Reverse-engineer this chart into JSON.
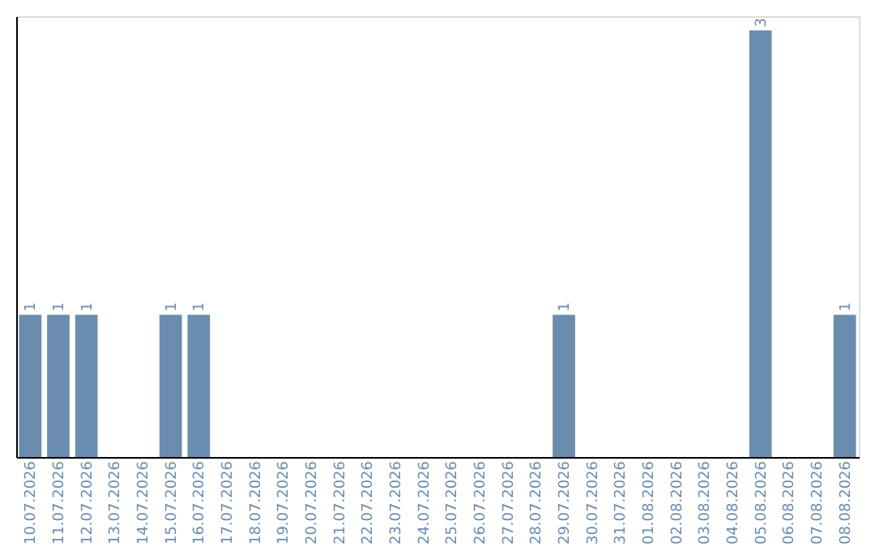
{
  "chart_data": {
    "type": "bar",
    "categories": [
      "10.07.2026",
      "11.07.2026",
      "12.07.2026",
      "13.07.2026",
      "14.07.2026",
      "15.07.2026",
      "16.07.2026",
      "17.07.2026",
      "18.07.2026",
      "19.07.2026",
      "20.07.2026",
      "21.07.2026",
      "22.07.2026",
      "23.07.2026",
      "24.07.2026",
      "25.07.2026",
      "26.07.2026",
      "27.07.2026",
      "28.07.2026",
      "29.07.2026",
      "30.07.2026",
      "31.07.2026",
      "01.08.2026",
      "02.08.2026",
      "03.08.2026",
      "04.08.2026",
      "05.08.2026",
      "06.08.2026",
      "07.08.2026",
      "08.08.2026"
    ],
    "values": [
      1,
      1,
      1,
      0,
      0,
      1,
      1,
      0,
      0,
      0,
      0,
      0,
      0,
      0,
      0,
      0,
      0,
      0,
      0,
      1,
      0,
      0,
      0,
      0,
      0,
      0,
      3,
      0,
      0,
      1
    ],
    "value_labels": [
      "1",
      "1",
      "1",
      null,
      null,
      "1",
      "1",
      null,
      null,
      null,
      null,
      null,
      null,
      null,
      null,
      null,
      null,
      null,
      null,
      "1",
      null,
      null,
      null,
      null,
      null,
      null,
      "3",
      null,
      null,
      "1"
    ],
    "color": "#6a8caf",
    "ylim": [
      0,
      3.1
    ],
    "tick_labels": "x"
  }
}
